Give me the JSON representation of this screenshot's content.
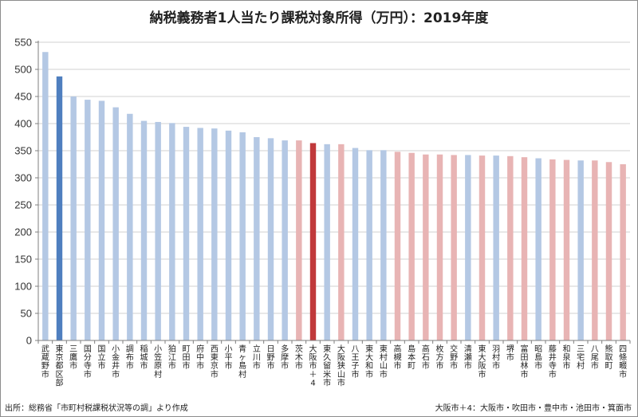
{
  "chart_data": {
    "type": "bar",
    "title": "納税義務者1人当たり課税対象所得（万円）：2019年度",
    "xlabel": "",
    "ylabel": "",
    "ylim": [
      0,
      550
    ],
    "yticks": [
      0,
      50,
      100,
      150,
      200,
      250,
      300,
      350,
      400,
      450,
      500,
      550
    ],
    "grid": true,
    "legend": "none",
    "colors": {
      "tokyo": "#b4c8e4",
      "tokyo_highlight": "#4f7fbf",
      "osaka": "#e8b4b4",
      "osaka_highlight": "#c0393b",
      "grid": "#d0d0d0",
      "axis": "#7f7f7f"
    },
    "categories": [
      "武蔵野市",
      "東京都区部",
      "三鷹市",
      "国分寺市",
      "国立市",
      "小金井市",
      "調布市",
      "稲城市",
      "小笠原村",
      "狛江市",
      "町田市",
      "府中市",
      "西東京市",
      "小平市",
      "青ヶ島村",
      "立川市",
      "日野市",
      "多摩市",
      "茨木市",
      "大阪市＋4",
      "東久留米市",
      "大阪狭山市",
      "八王子市",
      "東大和市",
      "東村山市",
      "高槻市",
      "島本町",
      "高石市",
      "枚方市",
      "交野市",
      "清瀬市",
      "東大阪市",
      "羽村市",
      "堺市",
      "富田林市",
      "昭島市",
      "藤井寺市",
      "和泉市",
      "三宅村",
      "八尾市",
      "熊取町",
      "四條畷市"
    ],
    "values": [
      532,
      487,
      450,
      444,
      442,
      430,
      418,
      405,
      403,
      401,
      394,
      392,
      391,
      387,
      384,
      375,
      373,
      369,
      369,
      364,
      362,
      362,
      355,
      351,
      351,
      348,
      346,
      343,
      343,
      342,
      342,
      341,
      341,
      340,
      338,
      336,
      334,
      333,
      332,
      332,
      329,
      325
    ],
    "groups": [
      "tokyo",
      "tokyo_highlight",
      "tokyo",
      "tokyo",
      "tokyo",
      "tokyo",
      "tokyo",
      "tokyo",
      "tokyo",
      "tokyo",
      "tokyo",
      "tokyo",
      "tokyo",
      "tokyo",
      "tokyo",
      "tokyo",
      "tokyo",
      "tokyo",
      "osaka",
      "osaka_highlight",
      "tokyo",
      "osaka",
      "tokyo",
      "tokyo",
      "tokyo",
      "osaka",
      "osaka",
      "osaka",
      "osaka",
      "osaka",
      "tokyo",
      "osaka",
      "tokyo",
      "osaka",
      "osaka",
      "tokyo",
      "osaka",
      "osaka",
      "tokyo",
      "osaka",
      "osaka",
      "osaka"
    ]
  },
  "footer": {
    "source": "出所：総務省「市町村税課税状況等の調」より作成",
    "note": "大阪市＋4：大阪市・吹田市・豊中市・池田市・箕面市"
  }
}
